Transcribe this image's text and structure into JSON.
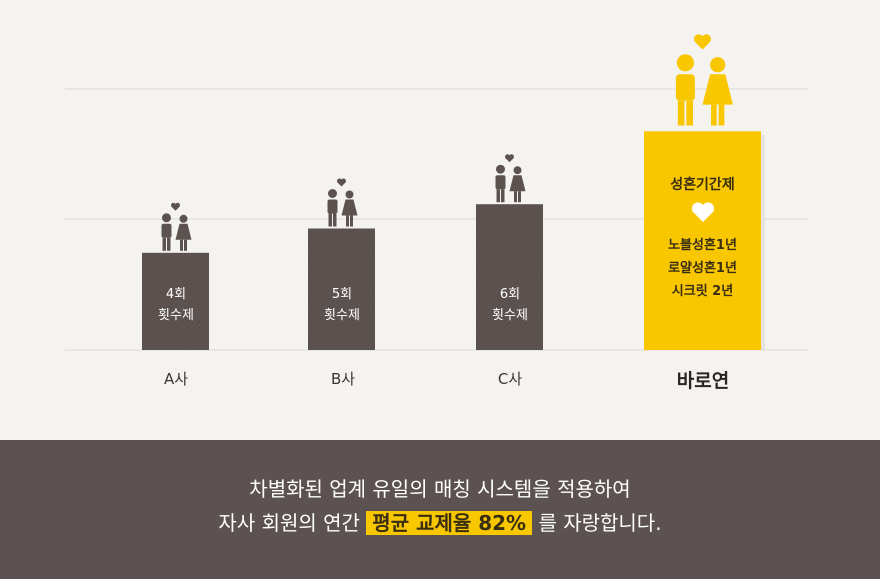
{
  "chart_data": {
    "type": "bar",
    "categories": [
      "A사",
      "B사",
      "C사",
      "바로연"
    ],
    "bar_texts": [
      "4회\n횟수제",
      "5회\n횟수제",
      "6회\n횟수제",
      ""
    ],
    "values": [
      4,
      5,
      6,
      9
    ],
    "highlight_index": 3,
    "highlight": {
      "title": "성혼기간제",
      "lines": [
        "노블성혼1년",
        "로얄성혼1년",
        "시크릿 2년"
      ]
    },
    "colors": {
      "bar": "#5c5350",
      "highlight": "#f8c700",
      "grid": "#dcd9d5",
      "icon": "#5c5350",
      "icon_highlight": "#f8c700"
    },
    "grid": true,
    "xlabel": "",
    "ylabel": ""
  },
  "bottom": {
    "line1": "차별화된 업계 유일의 매칭 시스템을 적용하여",
    "line2_prefix": "자사 회원의 연간",
    "line2_highlight": "평균 교제율 82%",
    "line2_suffix": "를 자랑합니다."
  }
}
